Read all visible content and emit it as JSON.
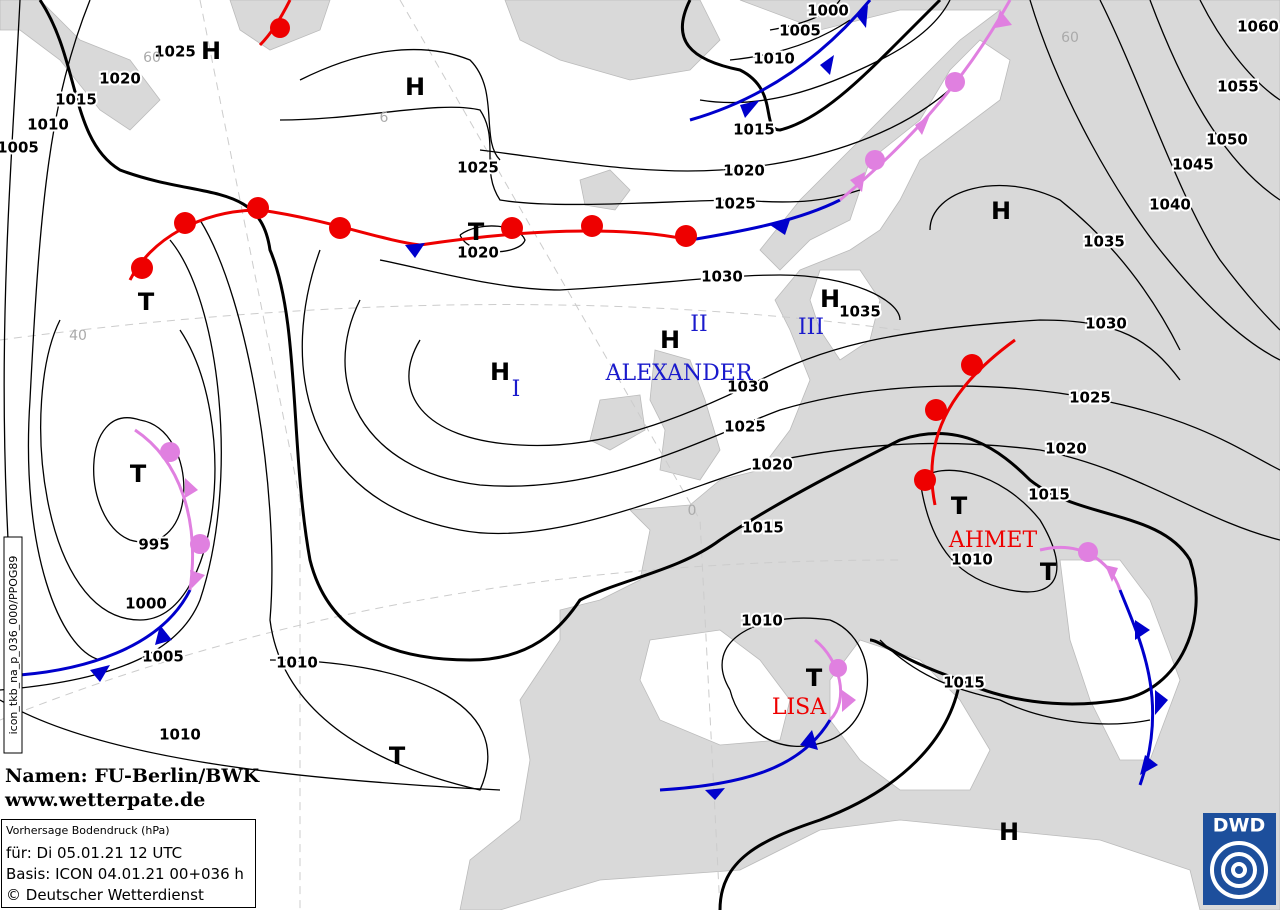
{
  "map": {
    "isobar_labels": [
      1025,
      1020,
      1015,
      1010,
      1005,
      1025,
      1020,
      1030,
      1025,
      1020,
      1015,
      1010,
      1005,
      1000,
      1060,
      1055,
      1050,
      1045,
      1040,
      1035,
      1035,
      1030,
      1030,
      1025,
      1025,
      1020,
      1020,
      1015,
      1015,
      1010,
      995,
      1000,
      1005,
      1010,
      1010,
      1010,
      1015
    ],
    "pressure_centers": [
      "H",
      "H",
      "H",
      "H",
      "H",
      "H",
      "H",
      "T",
      "T",
      "T",
      "T",
      "T",
      "T",
      "T"
    ],
    "numerals": [
      "I",
      "II",
      "III"
    ],
    "names": [
      "ALEXANDER",
      "AHMET",
      "LISA"
    ],
    "grid_labels": [
      "60",
      "6",
      "40",
      "0",
      "60"
    ],
    "credits": [
      "Namen: FU-Berlin/BWK",
      "www.wetterpate.de"
    ],
    "info_box": [
      "Vorhersage Bodendruck (hPa)",
      "für:  Di 05.01.21  12 UTC",
      "Basis: ICON  04.01.21 00+036 h",
      "© Deutscher Wetterdienst"
    ],
    "product_id": "icon_tkb_na_p_036_000/PPOG89",
    "logo": "DWD"
  }
}
